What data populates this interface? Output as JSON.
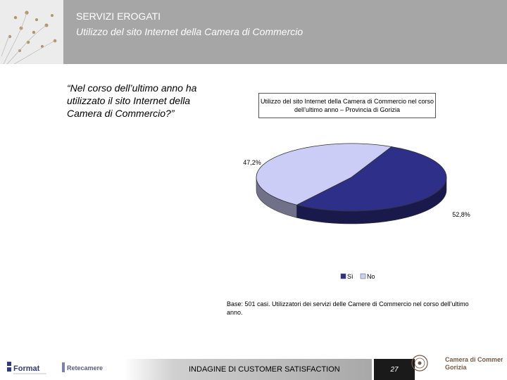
{
  "header": {
    "title": "SERVIZI EROGATI",
    "subtitle": "Utilizzo del sito Internet della Camera di Commercio"
  },
  "question": "“Nel corso dell’ultimo anno ha utilizzato il sito Internet della Camera di Commercio?”",
  "chart_data": {
    "type": "pie",
    "title": "Utilizzo del sito Internet della Camera di Commercio nel corso dell’ultimo anno – Provincia di Gorizia",
    "categories": [
      "Sì",
      "No"
    ],
    "values": [
      52.8,
      47.2
    ],
    "value_labels": [
      "52,8%",
      "47,2%"
    ],
    "colors": [
      "#2e2f88",
      "#cccdf7"
    ],
    "legend_position": "bottom"
  },
  "note": "Base: 501 casi. Utilizzatori dei servizi delle Camere di Commercio nel corso dell’ultimo anno.",
  "footer": {
    "label": "INDAGINE DI CUSTOMER SATISFACTION",
    "page_number": "27",
    "logos": {
      "format": "Format",
      "retecamere": "Retecamere",
      "camera_line1": "Camera di Commercio",
      "camera_line2": "Gorizia"
    }
  }
}
